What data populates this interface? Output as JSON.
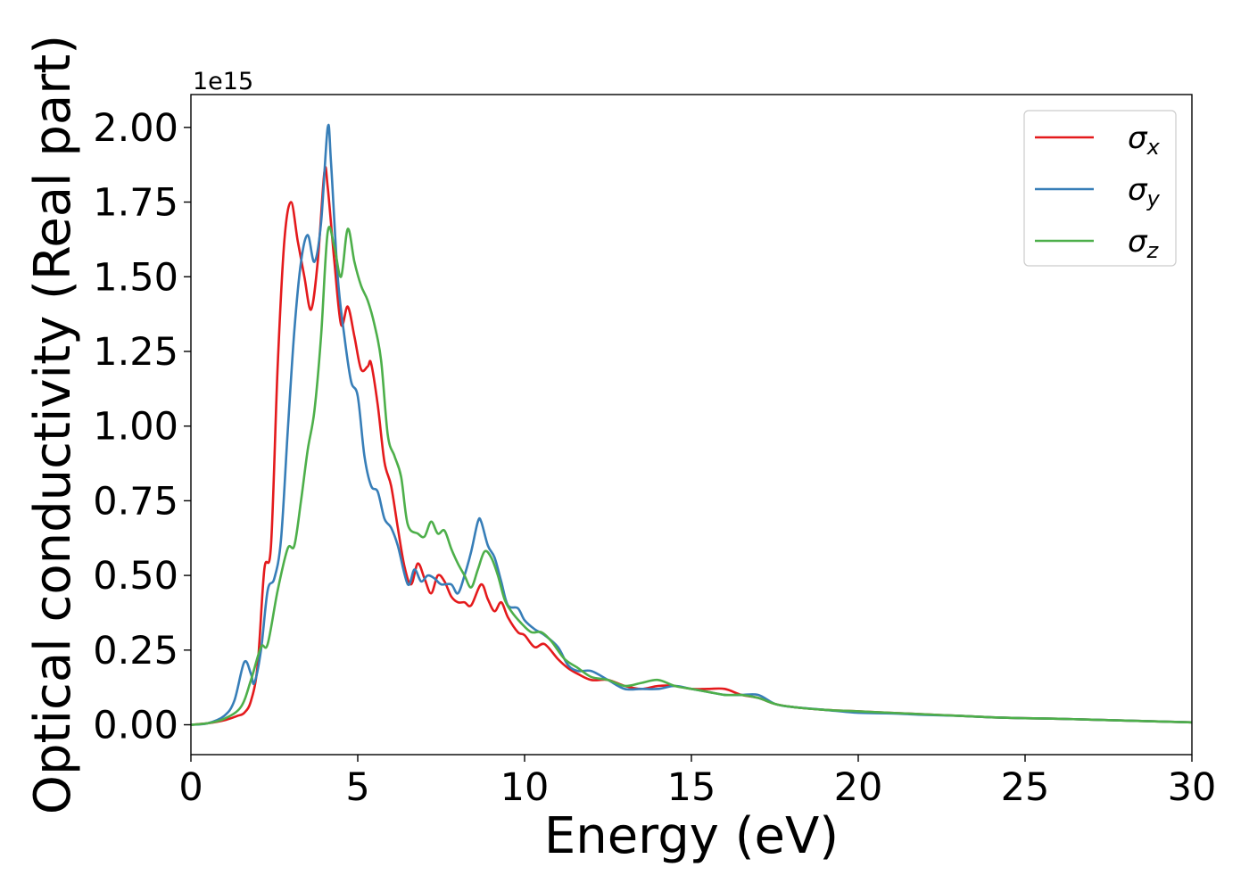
{
  "chart_data": {
    "type": "line",
    "xlabel": "Energy (eV)",
    "ylabel": "Optical conductivity (Real part)",
    "y_offset_label": "1e15",
    "xlim": [
      0,
      30
    ],
    "ylim": [
      -0.1,
      2.11
    ],
    "x_ticks": [
      0,
      5,
      10,
      15,
      20,
      25,
      30
    ],
    "x_tick_labels": [
      "0",
      "5",
      "10",
      "15",
      "20",
      "25",
      "30"
    ],
    "y_ticks": [
      0,
      0.25,
      0.5,
      0.75,
      1.0,
      1.25,
      1.5,
      1.75,
      2.0
    ],
    "y_tick_labels": [
      "0.00",
      "0.25",
      "0.50",
      "0.75",
      "1.00",
      "1.25",
      "1.50",
      "1.75",
      "2.00"
    ],
    "grid": false,
    "legend_position": "top-right",
    "series": [
      {
        "name": "σx",
        "symbol": "σ",
        "subscript": "x",
        "color": "#e41a1c",
        "x": [
          0,
          0.5,
          1.0,
          1.4,
          1.6,
          1.8,
          2.0,
          2.2,
          2.4,
          2.6,
          2.8,
          3.0,
          3.2,
          3.4,
          3.6,
          3.8,
          4.0,
          4.1,
          4.3,
          4.5,
          4.7,
          4.9,
          5.1,
          5.3,
          5.4,
          5.6,
          5.8,
          6.0,
          6.2,
          6.4,
          6.6,
          6.8,
          7.0,
          7.2,
          7.4,
          7.6,
          7.8,
          8.0,
          8.2,
          8.4,
          8.7,
          8.9,
          9.1,
          9.3,
          9.5,
          9.8,
          10.0,
          10.3,
          10.6,
          11.0,
          11.3,
          11.6,
          12.0,
          12.5,
          13.0,
          13.5,
          14.0,
          14.5,
          15.0,
          15.5,
          16.0,
          16.5,
          17.0,
          17.5,
          18.0,
          19.0,
          20.0,
          21.0,
          22.0,
          23.0,
          24.0,
          25.0,
          26.0,
          27.0,
          28.0,
          29.0,
          30.0
        ],
        "values": [
          0.0,
          0.005,
          0.015,
          0.03,
          0.04,
          0.08,
          0.2,
          0.52,
          0.6,
          1.2,
          1.62,
          1.75,
          1.62,
          1.5,
          1.39,
          1.55,
          1.85,
          1.8,
          1.55,
          1.34,
          1.4,
          1.3,
          1.19,
          1.2,
          1.21,
          1.07,
          0.88,
          0.8,
          0.66,
          0.53,
          0.47,
          0.54,
          0.49,
          0.44,
          0.5,
          0.48,
          0.43,
          0.41,
          0.41,
          0.4,
          0.47,
          0.42,
          0.38,
          0.41,
          0.36,
          0.31,
          0.3,
          0.26,
          0.27,
          0.22,
          0.19,
          0.17,
          0.15,
          0.15,
          0.13,
          0.12,
          0.13,
          0.13,
          0.12,
          0.12,
          0.12,
          0.1,
          0.09,
          0.07,
          0.06,
          0.05,
          0.045,
          0.04,
          0.035,
          0.03,
          0.025,
          0.022,
          0.02,
          0.017,
          0.014,
          0.011,
          0.008
        ]
      },
      {
        "name": "σy",
        "symbol": "σ",
        "subscript": "y",
        "color": "#377eb8",
        "x": [
          0,
          0.5,
          1.0,
          1.3,
          1.6,
          1.8,
          1.9,
          2.1,
          2.3,
          2.5,
          2.7,
          2.9,
          3.1,
          3.3,
          3.5,
          3.7,
          3.9,
          4.1,
          4.2,
          4.4,
          4.6,
          4.8,
          5.0,
          5.2,
          5.4,
          5.6,
          5.8,
          6.0,
          6.2,
          6.5,
          6.7,
          6.9,
          7.1,
          7.3,
          7.5,
          7.8,
          8.0,
          8.2,
          8.4,
          8.6,
          8.7,
          8.9,
          9.1,
          9.3,
          9.5,
          9.8,
          10.0,
          10.3,
          10.6,
          11.0,
          11.3,
          11.6,
          12.0,
          12.5,
          13.0,
          13.5,
          14.0,
          14.5,
          15.0,
          15.5,
          16.0,
          16.5,
          17.0,
          17.5,
          18.0,
          19.0,
          20.0,
          21.0,
          22.0,
          23.0,
          24.0,
          25.0,
          26.0,
          27.0,
          28.0,
          29.0,
          30.0
        ],
        "values": [
          0.0,
          0.005,
          0.03,
          0.08,
          0.21,
          0.17,
          0.14,
          0.25,
          0.45,
          0.49,
          0.62,
          0.98,
          1.32,
          1.55,
          1.64,
          1.55,
          1.68,
          2.0,
          1.88,
          1.5,
          1.3,
          1.15,
          1.1,
          0.9,
          0.8,
          0.78,
          0.69,
          0.66,
          0.6,
          0.47,
          0.52,
          0.48,
          0.5,
          0.49,
          0.47,
          0.47,
          0.44,
          0.5,
          0.58,
          0.68,
          0.68,
          0.6,
          0.56,
          0.48,
          0.4,
          0.39,
          0.35,
          0.32,
          0.3,
          0.26,
          0.2,
          0.18,
          0.18,
          0.15,
          0.12,
          0.12,
          0.12,
          0.13,
          0.12,
          0.11,
          0.1,
          0.1,
          0.1,
          0.07,
          0.06,
          0.05,
          0.04,
          0.038,
          0.033,
          0.03,
          0.025,
          0.022,
          0.02,
          0.017,
          0.014,
          0.011,
          0.008
        ]
      },
      {
        "name": "σz",
        "symbol": "σ",
        "subscript": "z",
        "color": "#4daf4a",
        "x": [
          0,
          0.5,
          1.0,
          1.5,
          1.8,
          2.1,
          2.3,
          2.6,
          2.9,
          3.1,
          3.3,
          3.5,
          3.7,
          3.9,
          4.1,
          4.3,
          4.5,
          4.7,
          4.9,
          5.1,
          5.3,
          5.5,
          5.7,
          5.9,
          6.1,
          6.3,
          6.5,
          6.8,
          7.0,
          7.2,
          7.4,
          7.6,
          7.8,
          8.0,
          8.2,
          8.4,
          8.6,
          8.8,
          9.0,
          9.2,
          9.4,
          9.6,
          9.9,
          10.2,
          10.5,
          10.8,
          11.2,
          11.6,
          12.0,
          12.5,
          13.0,
          13.5,
          14.0,
          14.5,
          15.0,
          15.5,
          16.0,
          16.5,
          17.0,
          17.5,
          18.0,
          19.0,
          20.0,
          21.0,
          22.0,
          23.0,
          24.0,
          25.0,
          26.0,
          27.0,
          28.0,
          29.0,
          30.0
        ],
        "values": [
          0.0,
          0.005,
          0.02,
          0.06,
          0.15,
          0.26,
          0.27,
          0.45,
          0.59,
          0.6,
          0.75,
          0.92,
          1.05,
          1.3,
          1.65,
          1.6,
          1.5,
          1.66,
          1.55,
          1.47,
          1.42,
          1.34,
          1.22,
          0.97,
          0.9,
          0.83,
          0.67,
          0.64,
          0.63,
          0.68,
          0.64,
          0.65,
          0.59,
          0.54,
          0.5,
          0.46,
          0.52,
          0.58,
          0.56,
          0.5,
          0.42,
          0.38,
          0.34,
          0.31,
          0.31,
          0.28,
          0.22,
          0.19,
          0.16,
          0.15,
          0.13,
          0.14,
          0.15,
          0.13,
          0.12,
          0.11,
          0.1,
          0.1,
          0.09,
          0.07,
          0.06,
          0.05,
          0.045,
          0.04,
          0.035,
          0.03,
          0.025,
          0.022,
          0.02,
          0.017,
          0.014,
          0.011,
          0.008
        ]
      }
    ]
  }
}
